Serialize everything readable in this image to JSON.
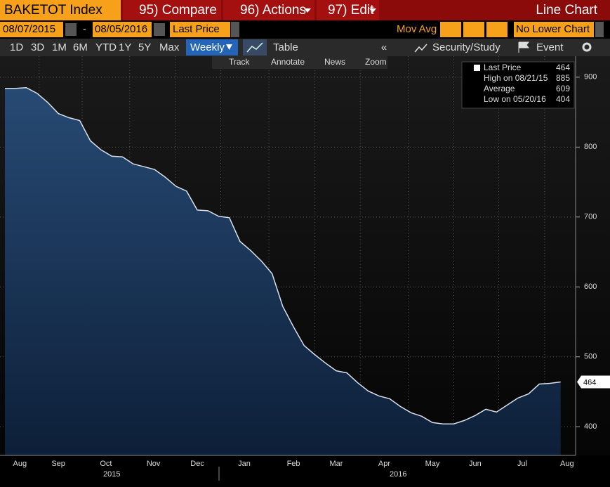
{
  "toolbar": {
    "ticker": "BAKETOT Index",
    "compare": "95) Compare",
    "actions": "96) Actions",
    "edit": "97) Edit",
    "chart_kind": "Line Chart"
  },
  "inputs": {
    "start": "08/07/2015",
    "dash": "-",
    "end": "08/05/2016",
    "field": "Last Price",
    "mov_avg": "Mov Avg",
    "lower": "No Lower Chart"
  },
  "periods": [
    "1D",
    "3D",
    "1M",
    "6M",
    "YTD",
    "1Y",
    "5Y",
    "Max"
  ],
  "buttons": {
    "freq": "Weekly",
    "table": "Table",
    "study": "Security/Study",
    "event": "Event"
  },
  "tools": [
    "Track",
    "Annotate",
    "News",
    "Zoom"
  ],
  "chart_data": {
    "type": "area",
    "legend": [
      {
        "label": "Last Price",
        "value": 464
      },
      {
        "label": "High on 08/21/15",
        "value": 885
      },
      {
        "label": "Average",
        "value": 609
      },
      {
        "label": "Low on 05/20/16",
        "value": 404
      }
    ],
    "x": [
      0,
      1,
      2,
      3,
      4,
      5,
      6,
      7,
      8,
      9,
      10,
      11,
      12,
      13,
      14,
      15,
      16,
      17,
      18,
      19,
      20,
      21,
      22,
      23,
      24,
      25,
      26,
      27,
      28,
      29,
      30,
      31,
      32,
      33,
      34,
      35,
      36,
      37,
      38,
      39,
      40,
      41,
      42,
      43,
      44,
      45,
      46,
      47,
      48,
      49,
      50,
      51,
      52
    ],
    "series": [
      {
        "name": "Last Price",
        "color": "#d8e0ea",
        "values": [
          884,
          884,
          885,
          877,
          864,
          848,
          842,
          838,
          809,
          796,
          787,
          786,
          776,
          772,
          768,
          757,
          744,
          737,
          710,
          709,
          701,
          699,
          665,
          652,
          637,
          619,
          572,
          543,
          516,
          503,
          491,
          480,
          477,
          463,
          451,
          444,
          440,
          429,
          420,
          415,
          406,
          404,
          404,
          409,
          416,
          425,
          421,
          431,
          441,
          447,
          461,
          462,
          464
        ]
      }
    ],
    "xlim": [
      -0.46,
      53.4
    ],
    "xticks": [
      {
        "value": 1.4,
        "label": "Aug"
      },
      {
        "value": 5,
        "label": "Sep"
      },
      {
        "value": 9.45,
        "label": "Oct"
      },
      {
        "value": 13.9,
        "label": "Nov"
      },
      {
        "value": 18,
        "label": "Dec"
      },
      {
        "value": 22.4,
        "label": "Jan"
      },
      {
        "value": 27,
        "label": "Feb"
      },
      {
        "value": 31,
        "label": "Mar"
      },
      {
        "value": 35.5,
        "label": "Apr"
      },
      {
        "value": 40,
        "label": "May"
      },
      {
        "value": 44,
        "label": "Jun"
      },
      {
        "value": 48.4,
        "label": "Jul"
      },
      {
        "value": 52.6,
        "label": "Aug"
      }
    ],
    "year_labels": [
      {
        "value": 10,
        "label": "2015"
      },
      {
        "value": 36.8,
        "label": "2016"
      }
    ],
    "ylim": [
      359,
      930
    ],
    "yticks": [
      400,
      500,
      600,
      700,
      800,
      900
    ],
    "grid": true
  }
}
